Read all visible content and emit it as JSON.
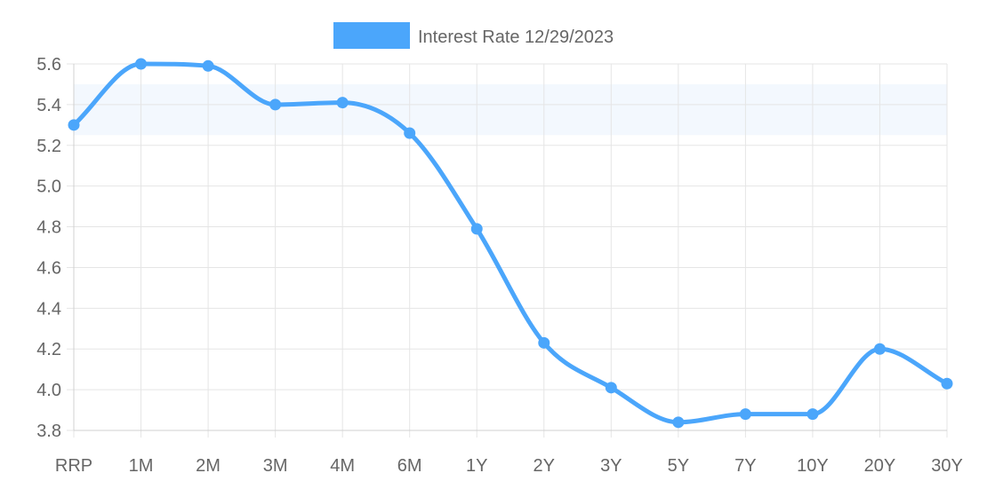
{
  "colors": {
    "line": "#4BA6FB",
    "band": "#F3F8FE",
    "grid": "#E5E5E5",
    "axis": "#D0D0D0",
    "text": "#666666"
  },
  "chart_data": {
    "type": "line",
    "categories": [
      "RRP",
      "1M",
      "2M",
      "3M",
      "4M",
      "6M",
      "1Y",
      "2Y",
      "3Y",
      "5Y",
      "7Y",
      "10Y",
      "20Y",
      "30Y"
    ],
    "series": [
      {
        "name": "Interest Rate 12/29/2023",
        "values": [
          5.3,
          5.6,
          5.59,
          5.4,
          5.41,
          5.26,
          4.79,
          4.23,
          4.01,
          3.84,
          3.88,
          3.88,
          4.2,
          4.03
        ]
      }
    ],
    "ylim": [
      3.8,
      5.6
    ],
    "yticks": [
      "5.6",
      "5.4",
      "5.2",
      "5.0",
      "4.8",
      "4.6",
      "4.4",
      "4.2",
      "4.0",
      "3.8"
    ],
    "band": [
      5.25,
      5.5
    ],
    "grid": true,
    "legend_position": "top-center",
    "curve": "smooth"
  }
}
